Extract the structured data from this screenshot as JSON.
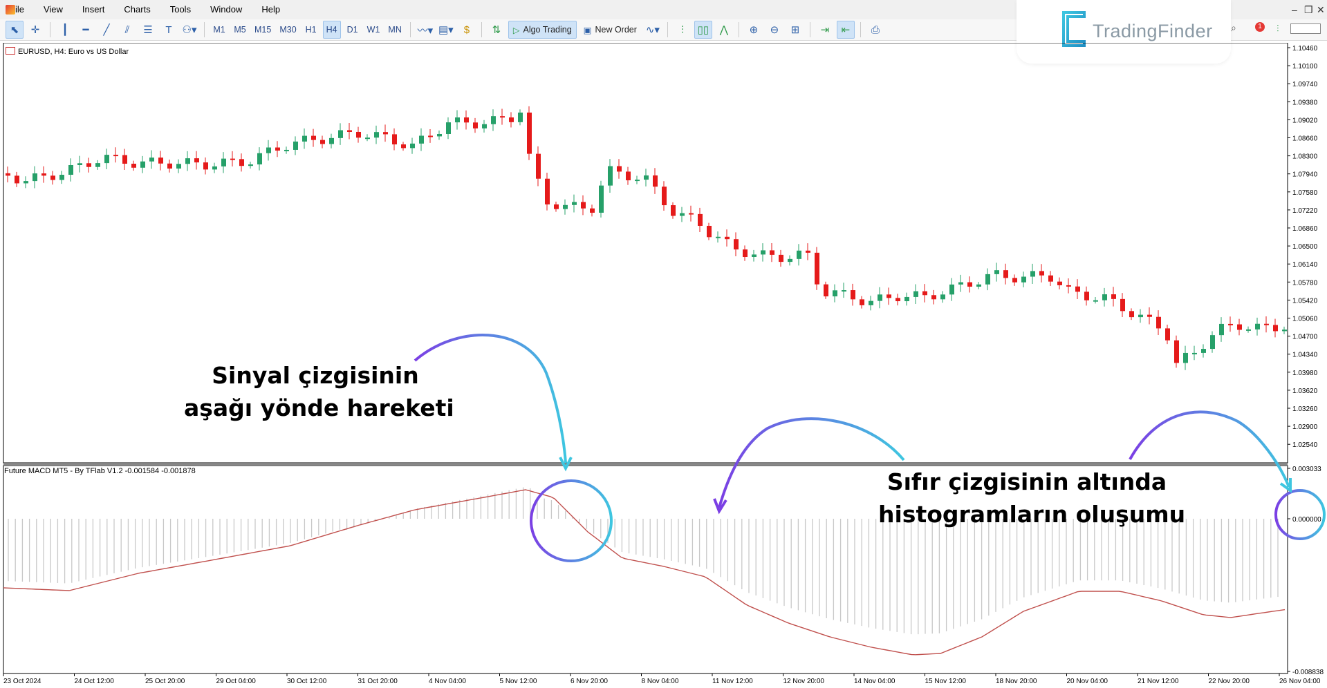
{
  "menu": {
    "items": [
      "File",
      "View",
      "Insert",
      "Charts",
      "Tools",
      "Window",
      "Help"
    ]
  },
  "toolbar": {
    "timeframes": [
      "M1",
      "M5",
      "M15",
      "M30",
      "H1",
      "H4",
      "D1",
      "W1",
      "MN"
    ],
    "active_timeframe": "H4",
    "algo_trading": "Algo Trading",
    "new_order": "New Order"
  },
  "brand": {
    "name": "TradingFinder",
    "accent_color": "#3ec6e0",
    "notification_count": "1"
  },
  "chart": {
    "symbol_label": "EURUSD, H4:  Euro vs US Dollar",
    "indicator_label": "Future MACD MT5 - By TFlab V1.2 -0.001584 -0.001878",
    "bull_color": "#26a069",
    "bear_color": "#e51a1a",
    "signal_color": "#c0504d",
    "histogram_color": "#c8c8c8",
    "price_ticks": [
      "1.10460",
      "1.10100",
      "1.09740",
      "1.09380",
      "1.09020",
      "1.08660",
      "1.08300",
      "1.07940",
      "1.07580",
      "1.07220",
      "1.06860",
      "1.06500",
      "1.06140",
      "1.05780",
      "1.05420",
      "1.05060",
      "1.04700",
      "1.04340",
      "1.03980",
      "1.03620",
      "1.03260",
      "1.02900",
      "1.02540"
    ],
    "indicator_ticks": [
      "0.003033",
      "0.000000",
      "-0.008838"
    ],
    "time_ticks": [
      "23 Oct 2024",
      "24 Oct 12:00",
      "25 Oct 20:00",
      "29 Oct 04:00",
      "30 Oct 12:00",
      "31 Oct 20:00",
      "4 Nov 04:00",
      "5 Nov 12:00",
      "6 Nov 20:00",
      "8 Nov 04:00",
      "11 Nov 12:00",
      "12 Nov 20:00",
      "14 Nov 04:00",
      "15 Nov 12:00",
      "18 Nov 20:00",
      "20 Nov 04:00",
      "21 Nov 12:00",
      "22 Nov 20:00",
      "26 Nov 04:00"
    ]
  },
  "annotations": {
    "signal_line_1": "Sinyal çizgisinin",
    "signal_line_2": "aşağı yönde hareketi",
    "histogram_line_1": "Sıfır çizgisinin altında",
    "histogram_line_2": "histogramların oluşumu"
  }
}
